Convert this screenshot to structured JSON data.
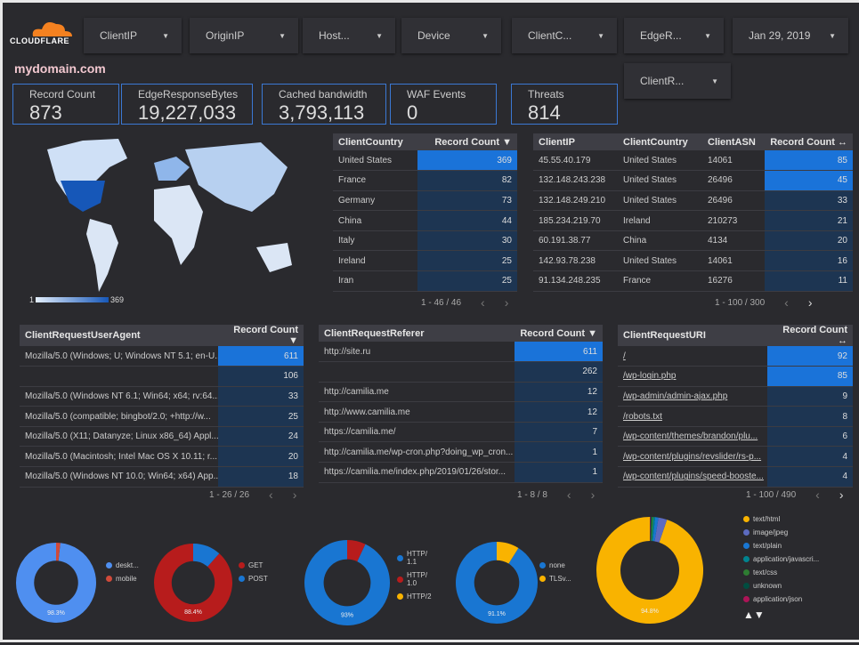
{
  "header": {
    "logo_text": "CLOUDFLARE",
    "site": "mydomain.com"
  },
  "filters": [
    "ClientIP",
    "OriginIP",
    "Host...",
    "Device",
    "ClientC...",
    "EdgeR...",
    "Jan 29, 2019",
    "ClientR..."
  ],
  "kpis": [
    {
      "label": "Record Count",
      "value": "873"
    },
    {
      "label": "EdgeResponseBytes",
      "value": "19,227,033"
    },
    {
      "label": "Cached bandwidth",
      "value": "3,793,113"
    },
    {
      "label": "WAF Events",
      "value": "0"
    },
    {
      "label": "Threats",
      "value": "814"
    }
  ],
  "map": {
    "legend_min": "1",
    "legend_max": "369"
  },
  "colors": {
    "bar_top": "#1a73d9",
    "bar": "#1d3552",
    "accent": "#3b78d4"
  },
  "tables": [
    {
      "id": "country",
      "headers": [
        "ClientCountry",
        "Record Count ▼"
      ],
      "rows": [
        [
          "United States",
          "369"
        ],
        [
          "France",
          "82"
        ],
        [
          "Germany",
          "73"
        ],
        [
          "China",
          "44"
        ],
        [
          "Italy",
          "30"
        ],
        [
          "Ireland",
          "25"
        ],
        [
          "Iran",
          "25"
        ]
      ],
      "pager": "1 - 46 / 46"
    },
    {
      "id": "ip",
      "headers": [
        "ClientIP",
        "ClientCountry",
        "ClientASN",
        "Record Count ↔"
      ],
      "rows": [
        [
          "45.55.40.179",
          "United States",
          "14061",
          "85"
        ],
        [
          "132.148.243.238",
          "United States",
          "26496",
          "45"
        ],
        [
          "132.148.249.210",
          "United States",
          "26496",
          "33"
        ],
        [
          "185.234.219.70",
          "Ireland",
          "210273",
          "21"
        ],
        [
          "60.191.38.77",
          "China",
          "4134",
          "20"
        ],
        [
          "142.93.78.238",
          "United States",
          "14061",
          "16"
        ],
        [
          "91.134.248.235",
          "France",
          "16276",
          "11"
        ]
      ],
      "pager": "1 - 100 / 300"
    },
    {
      "id": "ua",
      "headers": [
        "ClientRequestUserAgent",
        "Record Count ▼"
      ],
      "rows": [
        [
          "Mozilla/5.0 (Windows; U; Windows NT 5.1; en-U...",
          "611"
        ],
        [
          "",
          "106"
        ],
        [
          "Mozilla/5.0 (Windows NT 6.1; Win64; x64; rv:64....",
          "33"
        ],
        [
          "Mozilla/5.0 (compatible; bingbot/2.0; +http://w...",
          "25"
        ],
        [
          "Mozilla/5.0 (X11; Datanyze; Linux x86_64) Appl...",
          "24"
        ],
        [
          "Mozilla/5.0 (Macintosh; Intel Mac OS X 10.11; r...",
          "20"
        ],
        [
          "Mozilla/5.0 (Windows NT 10.0; Win64; x64) App...",
          "18"
        ]
      ],
      "pager": "1 - 26 / 26"
    },
    {
      "id": "ref",
      "headers": [
        "ClientRequestReferer",
        "Record Count ▼"
      ],
      "rows": [
        [
          "http://site.ru",
          "611"
        ],
        [
          "",
          "262"
        ],
        [
          "http://camilia.me",
          "12"
        ],
        [
          "http://www.camilia.me",
          "12"
        ],
        [
          "https://camilia.me/",
          "7"
        ],
        [
          "http://camilia.me/wp-cron.php?doing_wp_cron...",
          "1"
        ],
        [
          "https://camilia.me/index.php/2019/01/26/stor...",
          "1"
        ]
      ],
      "pager": "1 - 8 / 8"
    },
    {
      "id": "uri",
      "headers": [
        "ClientRequestURI",
        "Record Count ↔"
      ],
      "rows": [
        [
          "/",
          "92"
        ],
        [
          "/wp-login.php",
          "85"
        ],
        [
          "/wp-admin/admin-ajax.php",
          "9"
        ],
        [
          "/robots.txt",
          "8"
        ],
        [
          "/wp-content/themes/brandon/plu...",
          "6"
        ],
        [
          "/wp-content/plugins/revslider/rs-p...",
          "4"
        ],
        [
          "/wp-content/plugins/speed-booste...",
          "4"
        ]
      ],
      "pager": "1 - 100 / 490"
    }
  ],
  "chart_data": [
    {
      "type": "pie",
      "donut": true,
      "categories": [
        "deskt...",
        "mobile"
      ],
      "values": [
        98.3,
        1.7
      ],
      "colors": [
        "#4f8ff0",
        "#d04a3a"
      ],
      "label": "98.3%"
    },
    {
      "type": "pie",
      "donut": true,
      "categories": [
        "GET",
        "POST"
      ],
      "values": [
        88.4,
        11.6
      ],
      "colors": [
        "#b71c1c",
        "#1976d2"
      ],
      "label": "88.4%"
    },
    {
      "type": "pie",
      "donut": true,
      "categories": [
        "HTTP/ 1.1",
        "HTTP/ 1.0",
        "HTTP/2"
      ],
      "values": [
        93,
        7,
        0
      ],
      "colors": [
        "#1976d2",
        "#b71c1c",
        "#f9b300"
      ],
      "label": "93%"
    },
    {
      "type": "pie",
      "donut": true,
      "categories": [
        "none",
        "TLSv..."
      ],
      "values": [
        91.1,
        8.9
      ],
      "colors": [
        "#1976d2",
        "#f9b300"
      ],
      "label": "91.1%"
    },
    {
      "type": "pie",
      "donut": true,
      "categories": [
        "text/html",
        "image/jpeg",
        "text/plain",
        "application/javascri...",
        "text/css",
        "unknown",
        "application/json"
      ],
      "values": [
        94.8,
        2.6,
        1.0,
        0.6,
        0.5,
        0.3,
        0.2
      ],
      "colors": [
        "#f9b300",
        "#5c6bc0",
        "#1976d2",
        "#00838f",
        "#2e7d32",
        "#004d40",
        "#ad1457"
      ],
      "label": "94.8%"
    }
  ],
  "legend_pager": "▲▼"
}
